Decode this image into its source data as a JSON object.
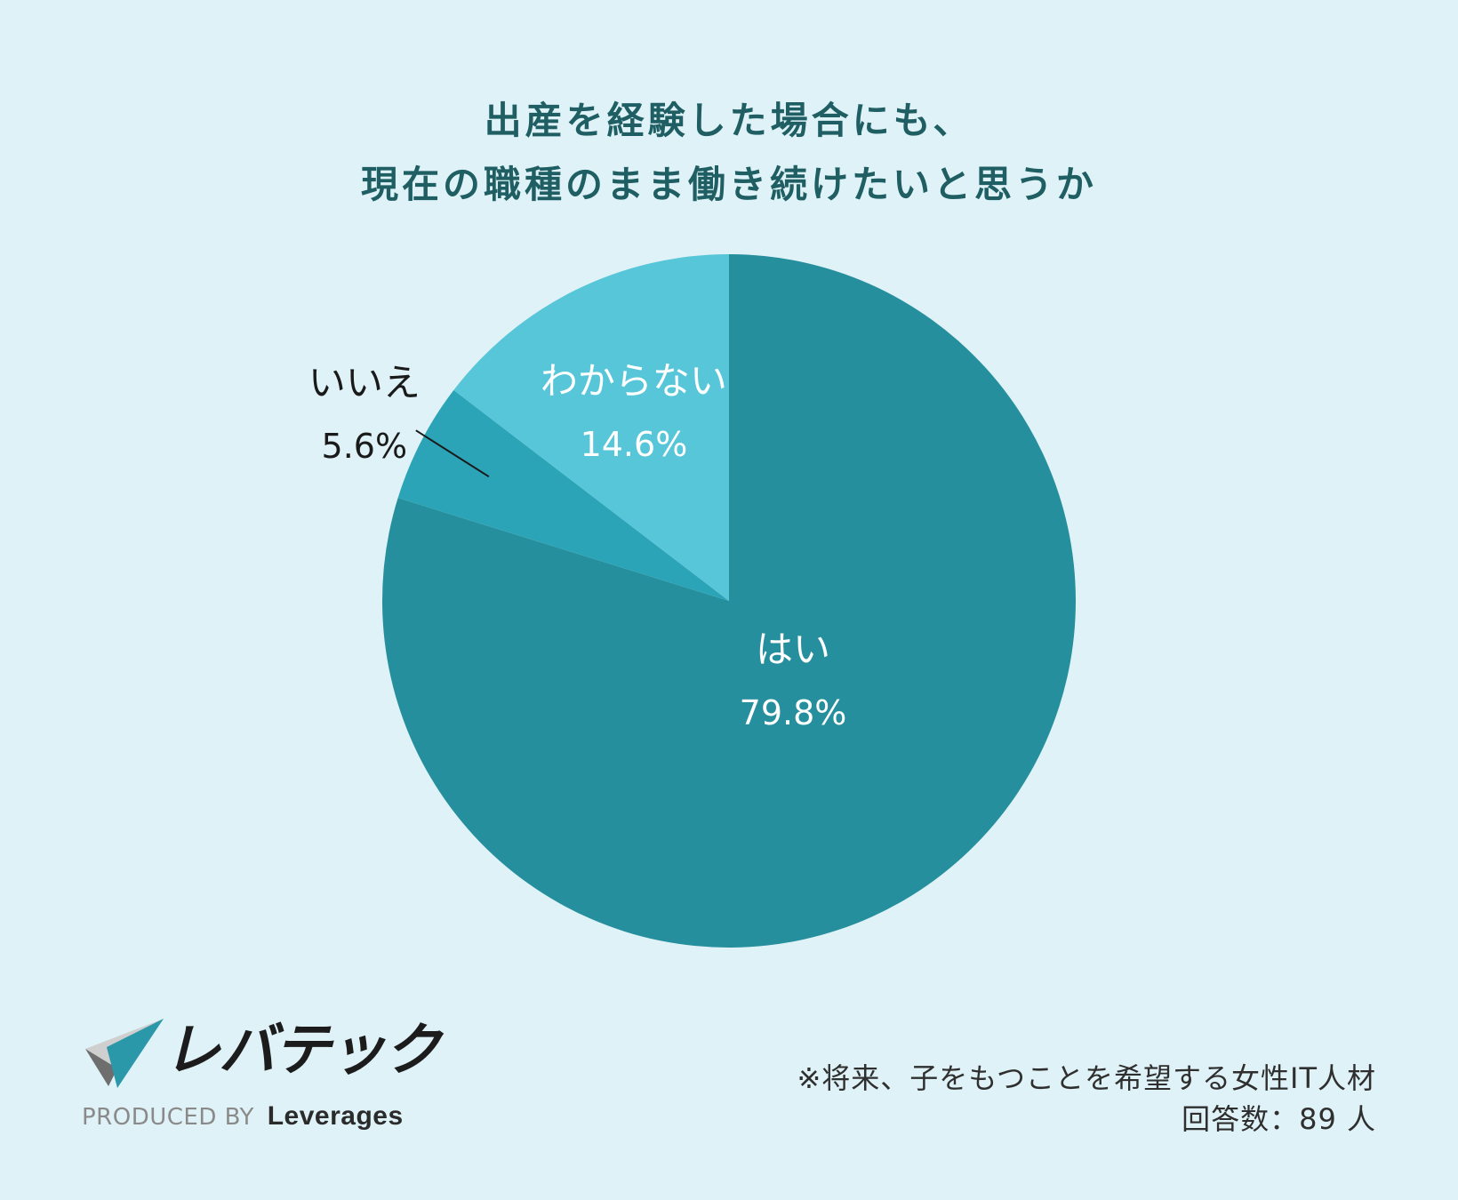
{
  "title": {
    "line1": "出産を経験した場合にも、",
    "line2": "現在の職種のまま働き続けたいと思うか"
  },
  "chart_data": {
    "type": "pie",
    "title": "出産を経験した場合にも、現在の職種のまま働き続けたいと思うか",
    "slices": [
      {
        "label": "はい",
        "value": 79.8,
        "display": "79.8%",
        "color": "#268f9d"
      },
      {
        "label": "いいえ",
        "value": 5.6,
        "display": "5.6%",
        "color": "#2ba4b7"
      },
      {
        "label": "わからない",
        "value": 14.6,
        "display": "14.6%",
        "color": "#57c6d8"
      }
    ],
    "start": "12 o'clock",
    "direction": "clockwise"
  },
  "brand": {
    "logo_text": "レバテック",
    "produced_by": "PRODUCED BY",
    "company": "Leverages"
  },
  "note": {
    "line1": "※将来、子をもつことを希望する女性IT人材",
    "line2": "回答数：89 人"
  },
  "colors": {
    "background": "#dff2f7",
    "title": "#1f5f63"
  }
}
